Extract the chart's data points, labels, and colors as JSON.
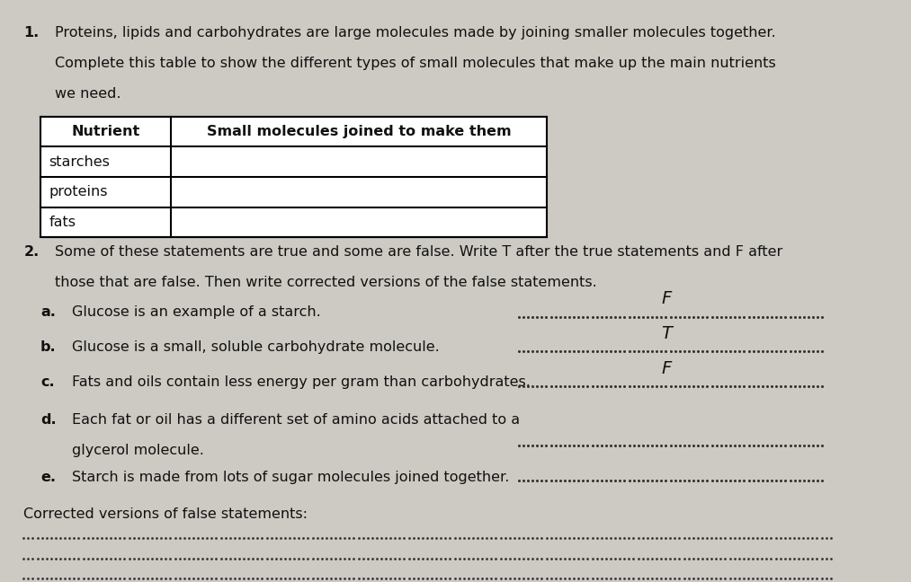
{
  "bg_color": "#cccac2",
  "text_color": "#111111",
  "title1": "1.",
  "para1_line1": "Proteins, lipids and carbohydrates are large molecules made by joining smaller molecules together.",
  "para1_line2": "Complete this table to show the different types of small molecules that make up the main nutrients",
  "para1_line3": "we need.",
  "table_header_col1": "Nutrient",
  "table_header_col2": "Small molecules joined to make them",
  "table_rows": [
    "starches",
    "proteins",
    "fats"
  ],
  "title2": "2.",
  "para2_line1": "Some of these statements are true and some are false. Write T after the true statements and F after",
  "para2_line2": "those that are false. Then write corrected versions of the false statements.",
  "statements": [
    {
      "label": "a.",
      "text": "Glucose is an example of a starch.",
      "answer": "F"
    },
    {
      "label": "b.",
      "text": "Glucose is a small, soluble carbohydrate molecule.",
      "answer": "T"
    },
    {
      "label": "c.",
      "text": "Fats and oils contain less energy per gram than carbohydrates.",
      "answer": "F"
    },
    {
      "label": "d.",
      "text_line1": "Each fat or oil has a different set of amino acids attached to a",
      "text_line2": "glycerol molecule.",
      "answer": ""
    },
    {
      "label": "e.",
      "text": "Starch is made from lots of sugar molecules joined together.",
      "answer": ""
    }
  ],
  "corrected_label": "Corrected versions of false statements:",
  "dotted_color": "#333333",
  "answer_color": "#111111",
  "fs": 11.5
}
